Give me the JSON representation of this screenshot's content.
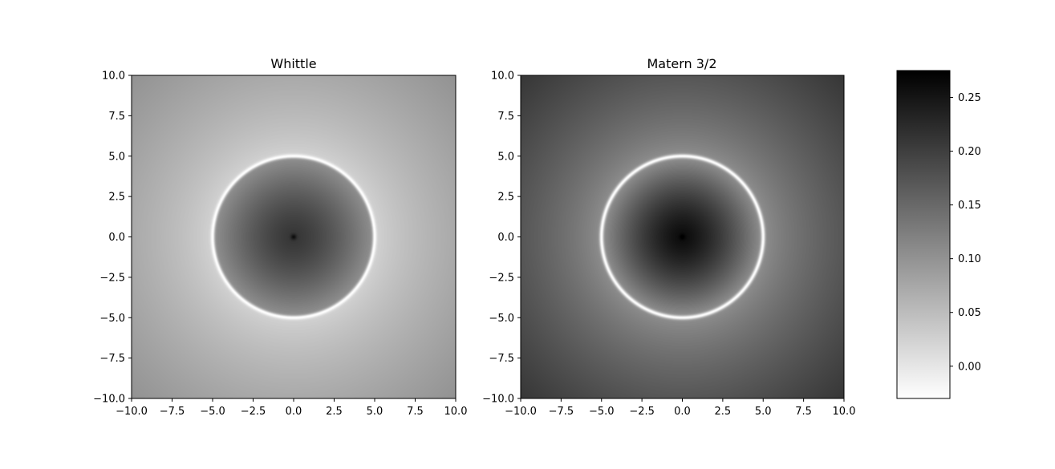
{
  "chart_data": [
    {
      "type": "heatmap",
      "title": "Whittle",
      "xlim": [
        -10,
        10
      ],
      "ylim": [
        -10,
        10
      ],
      "xticks": [
        "−10.0",
        "−7.5",
        "−5.0",
        "−2.5",
        "0.0",
        "2.5",
        "5.0",
        "7.5",
        "10.0"
      ],
      "yticks": [
        "−10.0",
        "−7.5",
        "−5.0",
        "−2.5",
        "0.0",
        "2.5",
        "5.0",
        "7.5",
        "10.0"
      ],
      "colormap": "gray_r",
      "field": {
        "center_value": 0.21,
        "ring_radius": 5.0,
        "ring_value": -0.03,
        "inner_edge_value": 0.1,
        "outer_edge_value": 0.02,
        "corner_value": 0.1,
        "center_spike_value": 0.26
      }
    },
    {
      "type": "heatmap",
      "title": "Matern 3/2",
      "xlim": [
        -10,
        10
      ],
      "ylim": [
        -10,
        10
      ],
      "xticks": [
        "−10.0",
        "−7.5",
        "−5.0",
        "−2.5",
        "0.0",
        "2.5",
        "5.0",
        "7.5",
        "10.0"
      ],
      "yticks": [
        "−10.0",
        "−7.5",
        "−5.0",
        "−2.5",
        "0.0",
        "2.5",
        "5.0",
        "7.5",
        "10.0"
      ],
      "colormap": "gray_r",
      "field": {
        "center_value": 0.26,
        "ring_radius": 5.0,
        "ring_value": -0.03,
        "inner_edge_value": 0.1,
        "outer_edge_value": 0.1,
        "corner_value": 0.21,
        "center_spike_value": 0.28
      }
    }
  ],
  "colorbar": {
    "vmin": -0.03,
    "vmax": 0.275,
    "ticks": [
      0.0,
      0.05,
      0.1,
      0.15,
      0.2,
      0.25
    ],
    "tick_labels": [
      "0.00",
      "0.05",
      "0.10",
      "0.15",
      "0.20",
      "0.25"
    ]
  }
}
